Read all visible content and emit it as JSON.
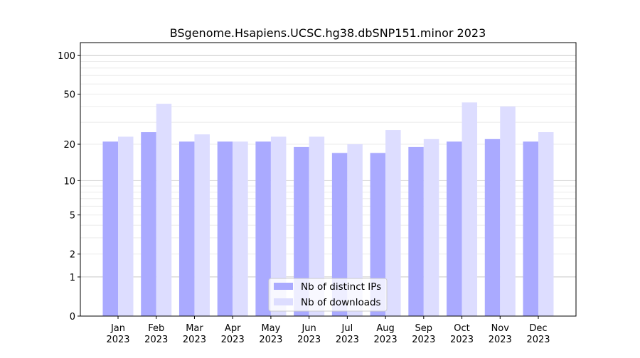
{
  "chart_data": {
    "type": "bar",
    "title": "BSgenome.Hsapiens.UCSC.hg38.dbSNP151.minor 2023",
    "xlabel": "",
    "ylabel": "",
    "yscale": "log10(1+y)",
    "ylim": [
      0,
      126
    ],
    "yticks": [
      0,
      1,
      2,
      5,
      10,
      20,
      50,
      100
    ],
    "ytick_labels": [
      "0",
      "1",
      "2",
      "5",
      "10",
      "20",
      "50",
      "100"
    ],
    "grid": true,
    "legend_position": "bottom-center",
    "categories": [
      "Jan\n2023",
      "Feb\n2023",
      "Mar\n2023",
      "Apr\n2023",
      "May\n2023",
      "Jun\n2023",
      "Jul\n2023",
      "Aug\n2023",
      "Sep\n2023",
      "Oct\n2023",
      "Nov\n2023",
      "Dec\n2023"
    ],
    "category_months": [
      "Jan",
      "Feb",
      "Mar",
      "Apr",
      "May",
      "Jun",
      "Jul",
      "Aug",
      "Sep",
      "Oct",
      "Nov",
      "Dec"
    ],
    "category_year": "2023",
    "series": [
      {
        "name": "Nb of distinct IPs",
        "color": "#aaaaff",
        "values": [
          21,
          25,
          21,
          21,
          21,
          19,
          17,
          17,
          19,
          21,
          22,
          21
        ]
      },
      {
        "name": "Nb of downloads",
        "color": "#ddddff",
        "values": [
          23,
          42,
          24,
          21,
          23,
          23,
          20,
          26,
          22,
          43,
          40,
          25
        ]
      }
    ]
  }
}
